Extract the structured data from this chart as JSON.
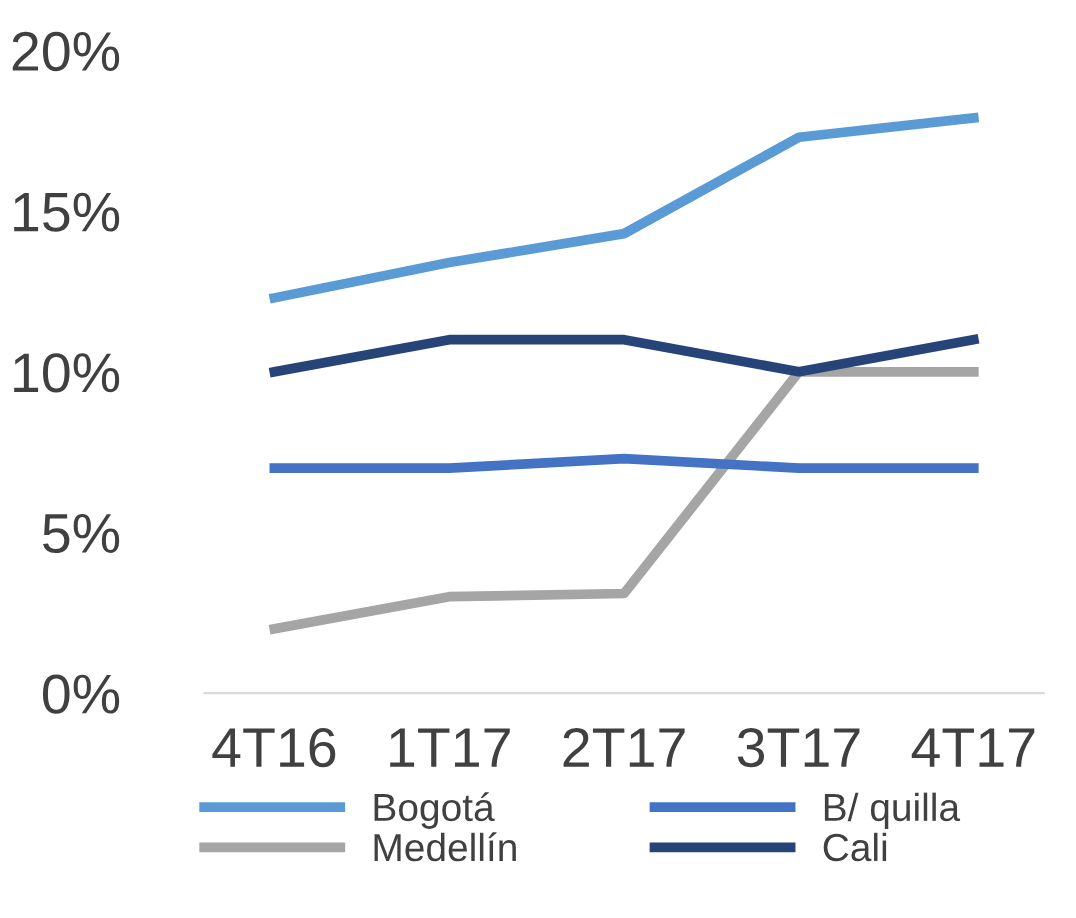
{
  "chart_data": {
    "type": "line",
    "categories": [
      "4T16",
      "1T17",
      "2T17",
      "3T17",
      "4T17"
    ],
    "series": [
      {
        "name": "Bogotá",
        "color": "#5b9bd5",
        "values": [
          12.3,
          13.4,
          14.3,
          17.3,
          17.9
        ]
      },
      {
        "name": "Medellín",
        "color": "#a5a5a5",
        "values": [
          2.0,
          3.0,
          3.1,
          10.0,
          10.0
        ]
      },
      {
        "name": "B/ quilla",
        "color": "#4472c4",
        "values": [
          7.0,
          7.0,
          7.3,
          7.0,
          7.0
        ]
      },
      {
        "name": "Cali",
        "color": "#264478",
        "values": [
          10.0,
          11.0,
          11.0,
          10.0,
          11.0
        ]
      }
    ],
    "ylim": [
      0,
      20
    ],
    "yticks": [
      {
        "value": 0,
        "label": "0%"
      },
      {
        "value": 5,
        "label": "5%"
      },
      {
        "value": 10,
        "label": "10%"
      },
      {
        "value": 15,
        "label": "15%"
      },
      {
        "value": 20,
        "label": "20%"
      }
    ],
    "grid": false,
    "legend": "bottom",
    "marker": "none",
    "line_style": "solid"
  }
}
